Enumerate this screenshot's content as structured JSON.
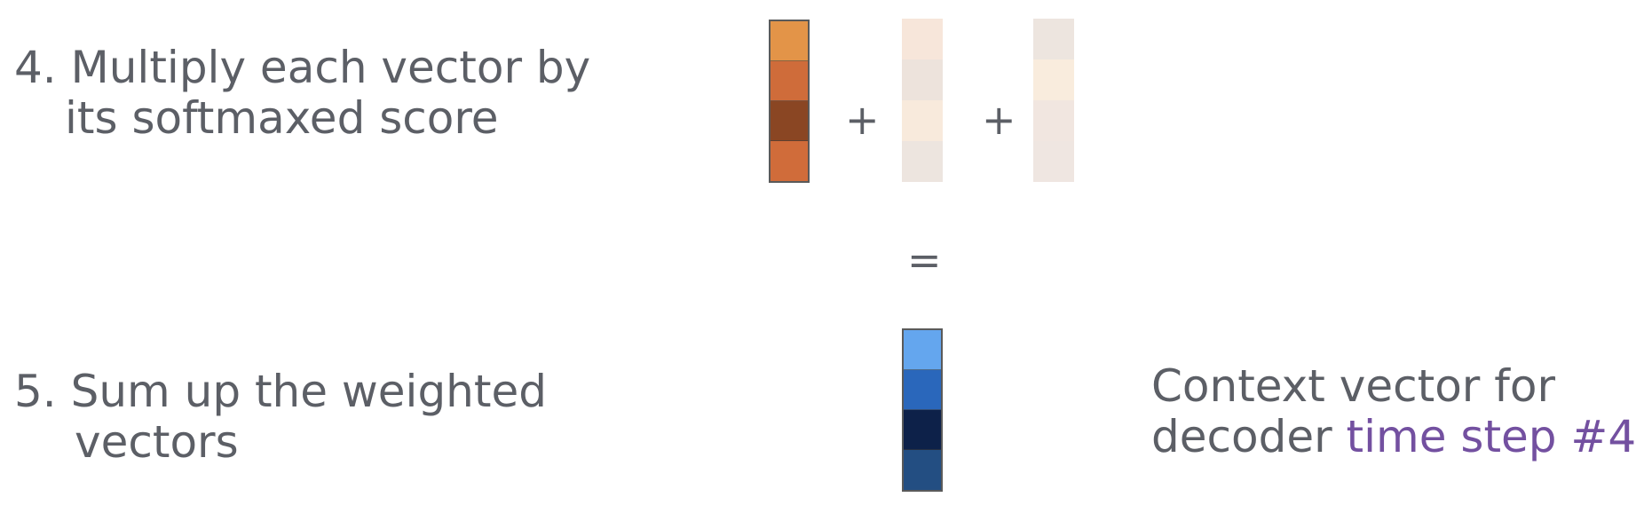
{
  "step4": {
    "line1": "4. Multiply each vector by",
    "line2": "its softmaxed score"
  },
  "step5": {
    "line1": "5. Sum up the weighted",
    "line2": "vectors"
  },
  "operators": {
    "plus": "+",
    "equals": "="
  },
  "vectors": {
    "weighted_1": [
      "#e39448",
      "#cf6c3a",
      "#8a4623",
      "#d06c3a"
    ],
    "weighted_2": [
      "#f7e6da",
      "#ede3dc",
      "#f8eadc",
      "#ede5df"
    ],
    "weighted_3": [
      "#ede5df",
      "#f9ecdd",
      "#f1e6e0",
      "#efe6e1"
    ],
    "context": [
      "#64a6ee",
      "#2a67bb",
      "#0d2149",
      "#234e82"
    ]
  },
  "context_label": {
    "line1": "Context vector for",
    "line2_prefix": "decoder ",
    "line2_highlight": "time step #4",
    "highlight_color": "#7350a0"
  }
}
